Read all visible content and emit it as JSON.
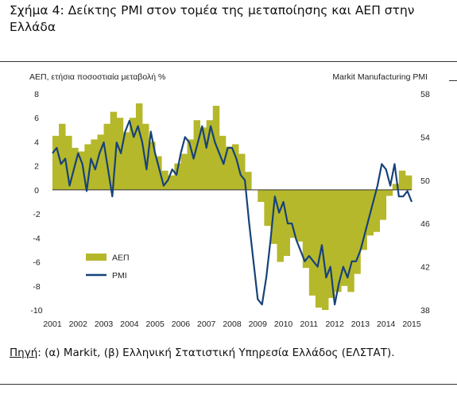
{
  "figure": {
    "title": "Σχήμα 4: Δείκτης PMI στον τομέα της μεταποίησης και ΑΕΠ στην Ελλάδα",
    "source_label": "Πηγή",
    "source_text": ": (α) Markit, (β) Ελληνική Στατιστική Υπηρεσία Ελλάδος (ΕΛΣΤΑΤ)."
  },
  "colors": {
    "gdp": "#b5b82a",
    "pmi": "#17427a",
    "axis": "#555555",
    "text": "#222222"
  },
  "chart_data": {
    "type": "bar",
    "left_axis_title": "ΑΕΠ, ετήσια ποσοστιαία μεταβολή %",
    "right_axis_title": "Markit Manufacturing PMI",
    "left_axis": {
      "ylim": [
        -10,
        8
      ],
      "ticks": [
        "8",
        "6",
        "4",
        "2",
        "0",
        "-2",
        "-4",
        "-6",
        "-8",
        "-10"
      ]
    },
    "right_axis": {
      "ylim": [
        38,
        58
      ],
      "ticks": [
        "58",
        "54",
        "50",
        "46",
        "42",
        "38"
      ]
    },
    "x_axis": {
      "range": [
        2001,
        2015
      ],
      "ticks": [
        "2001",
        "2002",
        "2003",
        "2004",
        "2005",
        "2006",
        "2007",
        "2008",
        "2009",
        "2010",
        "2011",
        "2012",
        "2013",
        "2014",
        "2015"
      ]
    },
    "legend": {
      "position": "lower-left"
    },
    "series": [
      {
        "name": "ΑΕΠ",
        "type": "bar",
        "axis": "left",
        "x": [
          2001.0,
          2001.25,
          2001.5,
          2001.75,
          2002.0,
          2002.25,
          2002.5,
          2002.75,
          2003.0,
          2003.25,
          2003.5,
          2003.75,
          2004.0,
          2004.25,
          2004.5,
          2004.75,
          2005.0,
          2005.25,
          2005.5,
          2005.75,
          2006.0,
          2006.25,
          2006.5,
          2006.75,
          2007.0,
          2007.25,
          2007.5,
          2007.75,
          2008.0,
          2008.25,
          2008.5,
          2008.75,
          2009.0,
          2009.25,
          2009.5,
          2009.75,
          2010.0,
          2010.25,
          2010.5,
          2010.75,
          2011.0,
          2011.25,
          2011.5,
          2011.75,
          2012.0,
          2012.25,
          2012.5,
          2012.75,
          2013.0,
          2013.25,
          2013.5,
          2013.75,
          2014.0,
          2014.25,
          2014.5,
          2014.75
        ],
        "values": [
          4.5,
          5.5,
          4.5,
          3.5,
          3.2,
          3.8,
          4.2,
          4.6,
          5.5,
          6.5,
          6.0,
          4.8,
          6.0,
          7.2,
          5.5,
          4.0,
          2.8,
          1.6,
          1.2,
          2.2,
          3.0,
          4.2,
          5.8,
          5.2,
          5.8,
          7.0,
          4.5,
          3.6,
          3.8,
          3.0,
          1.5,
          0.0,
          -1.0,
          -3.0,
          -4.5,
          -6.0,
          -5.5,
          -4.0,
          -4.3,
          -6.5,
          -8.8,
          -9.8,
          -10.0,
          -9.0,
          -8.5,
          -8.0,
          -8.5,
          -7.0,
          -5.0,
          -3.8,
          -3.5,
          -2.5,
          -0.5,
          0.5,
          1.6,
          1.2
        ]
      },
      {
        "name": "PMI",
        "type": "line",
        "axis": "right",
        "x": [
          2001.0,
          2001.167,
          2001.333,
          2001.5,
          2001.667,
          2001.833,
          2002.0,
          2002.167,
          2002.333,
          2002.5,
          2002.667,
          2002.833,
          2003.0,
          2003.167,
          2003.333,
          2003.5,
          2003.667,
          2003.833,
          2004.0,
          2004.167,
          2004.333,
          2004.5,
          2004.667,
          2004.833,
          2005.0,
          2005.167,
          2005.333,
          2005.5,
          2005.667,
          2005.833,
          2006.0,
          2006.167,
          2006.333,
          2006.5,
          2006.667,
          2006.833,
          2007.0,
          2007.167,
          2007.333,
          2007.5,
          2007.667,
          2007.833,
          2008.0,
          2008.167,
          2008.333,
          2008.5,
          2008.667,
          2008.833,
          2009.0,
          2009.167,
          2009.333,
          2009.5,
          2009.667,
          2009.833,
          2010.0,
          2010.167,
          2010.333,
          2010.5,
          2010.667,
          2010.833,
          2011.0,
          2011.167,
          2011.333,
          2011.5,
          2011.667,
          2011.833,
          2012.0,
          2012.167,
          2012.333,
          2012.5,
          2012.667,
          2012.833,
          2013.0,
          2013.167,
          2013.333,
          2013.5,
          2013.667,
          2013.833,
          2014.0,
          2014.167,
          2014.333,
          2014.5,
          2014.667,
          2014.833,
          2015.0
        ],
        "values": [
          52.5,
          53.0,
          51.5,
          52.0,
          49.5,
          51.0,
          52.5,
          51.5,
          49.0,
          52.0,
          51.0,
          52.5,
          53.5,
          51.0,
          48.5,
          53.5,
          52.5,
          54.5,
          55.5,
          54.0,
          55.0,
          53.5,
          51.0,
          54.5,
          52.5,
          51.0,
          49.5,
          50.0,
          51.0,
          50.5,
          52.5,
          54.0,
          53.5,
          52.0,
          53.5,
          55.0,
          53.0,
          55.0,
          53.5,
          52.5,
          51.5,
          53.0,
          53.0,
          52.0,
          50.5,
          50.0,
          46.0,
          42.5,
          39.0,
          38.5,
          41.0,
          44.5,
          48.5,
          47.0,
          48.0,
          46.0,
          46.0,
          44.5,
          43.5,
          42.5,
          43.0,
          42.5,
          42.0,
          44.0,
          41.0,
          42.0,
          38.5,
          40.5,
          42.0,
          41.0,
          42.5,
          42.5,
          43.5,
          45.0,
          46.5,
          48.0,
          49.5,
          51.5,
          51.0,
          49.5,
          51.5,
          48.5,
          48.5,
          49.0,
          48.0
        ]
      }
    ]
  }
}
